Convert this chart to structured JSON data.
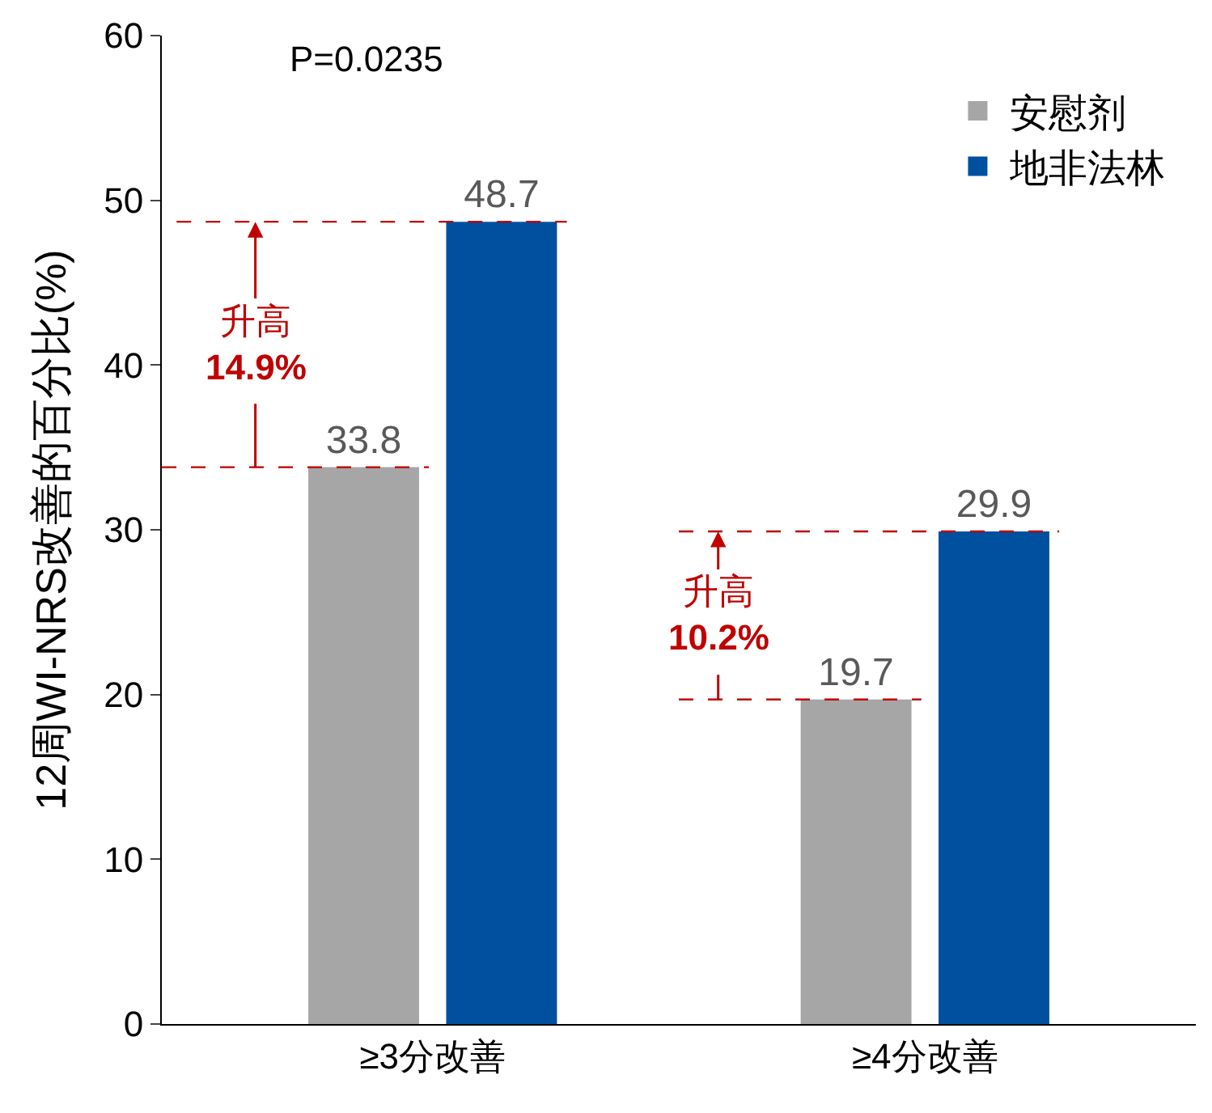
{
  "chart_data": {
    "type": "bar",
    "ylabel": "12周WI-NRS改善的百分比(%)",
    "categories": [
      "≥3分改善",
      "≥4分改善"
    ],
    "series": [
      {
        "name": "安慰剂",
        "color": "#a6a6a6",
        "values": [
          33.8,
          19.7
        ]
      },
      {
        "name": "地非法林",
        "color": "#0050a0",
        "values": [
          48.7,
          29.9
        ]
      }
    ],
    "ylim": [
      0,
      60
    ],
    "yticks": [
      0,
      10,
      20,
      30,
      40,
      50,
      60
    ],
    "data_labels": true,
    "legend": "top right",
    "ref_lines": [
      {
        "axis": "y",
        "value": 33.8,
        "color": "#c00000",
        "line_style": "dashed"
      },
      {
        "axis": "y",
        "value": 48.7,
        "color": "#c00000",
        "line_style": "dashed"
      },
      {
        "axis": "y",
        "value": 19.7,
        "color": "#c00000",
        "line_style": "dashed"
      },
      {
        "axis": "y",
        "value": 29.9,
        "color": "#c00000",
        "line_style": "dashed"
      }
    ],
    "annotations": [
      "P=0.0235",
      {
        "text": "升高\n14.9%",
        "y": 48.7
      },
      {
        "text": "升高\n10.2%",
        "y": 29.9
      }
    ]
  }
}
